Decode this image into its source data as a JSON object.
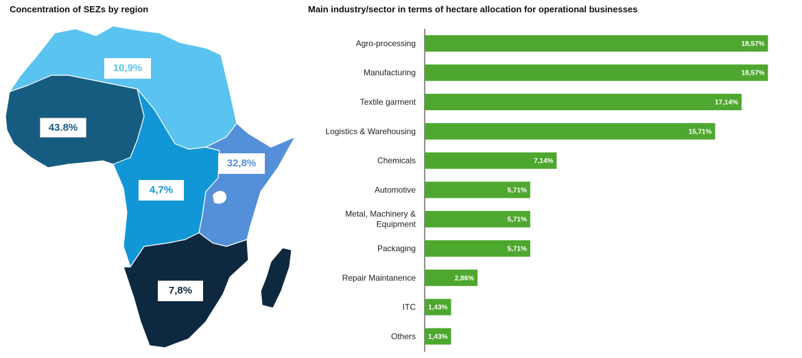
{
  "map": {
    "title": "Concentration of SEZs by region",
    "regions": [
      {
        "name": "North Africa",
        "value": "10,9%",
        "color": "#5BC3EF",
        "text_color": "#5BC3EF"
      },
      {
        "name": "West Africa",
        "value": "43.8%",
        "color": "#165C80",
        "text_color": "#165C80"
      },
      {
        "name": "Central Africa",
        "value": "4,7%",
        "color": "#1297D6",
        "text_color": "#1297D6"
      },
      {
        "name": "East Africa",
        "value": "32,8%",
        "color": "#5390D9",
        "text_color": "#5390D9"
      },
      {
        "name": "Southern Africa",
        "value": "7,8%",
        "color": "#0E2840",
        "text_color": "#0E2840"
      }
    ]
  },
  "chart_data": {
    "type": "bar",
    "orientation": "horizontal",
    "title": "Main industry/sector in terms of hectare allocation for operational businesses",
    "categories": [
      "Agro-processing",
      "Manufacturing",
      "Textile garment",
      "Logistics & Warehousing",
      "Chemicals",
      "Automotive",
      "Metal, Machinery & Equipment",
      "Packaging",
      "Repair Maintanence",
      "ITC",
      "Others"
    ],
    "category_lines": [
      [
        "Agro-processing"
      ],
      [
        "Manufacturing"
      ],
      [
        "Textile garment"
      ],
      [
        "Logistics & Warehousing"
      ],
      [
        "Chemicals"
      ],
      [
        "Automotive"
      ],
      [
        "Metal, Machinery &",
        "Equipment"
      ],
      [
        "Packaging"
      ],
      [
        "Repair Maintanence"
      ],
      [
        "ITC"
      ],
      [
        "Others"
      ]
    ],
    "values": [
      18.57,
      18.57,
      17.14,
      15.71,
      7.14,
      5.71,
      5.71,
      5.71,
      2.86,
      1.43,
      1.43
    ],
    "value_labels": [
      "18,57%",
      "18,57%",
      "17,14%",
      "15,71%",
      "7,14%",
      "5,71%",
      "5,71%",
      "5,71%",
      "2,86%",
      "1,43%",
      "1,43%"
    ],
    "xlim": [
      0,
      20
    ],
    "bar_color": "#4EA72E",
    "axis": "left",
    "grid": false
  }
}
